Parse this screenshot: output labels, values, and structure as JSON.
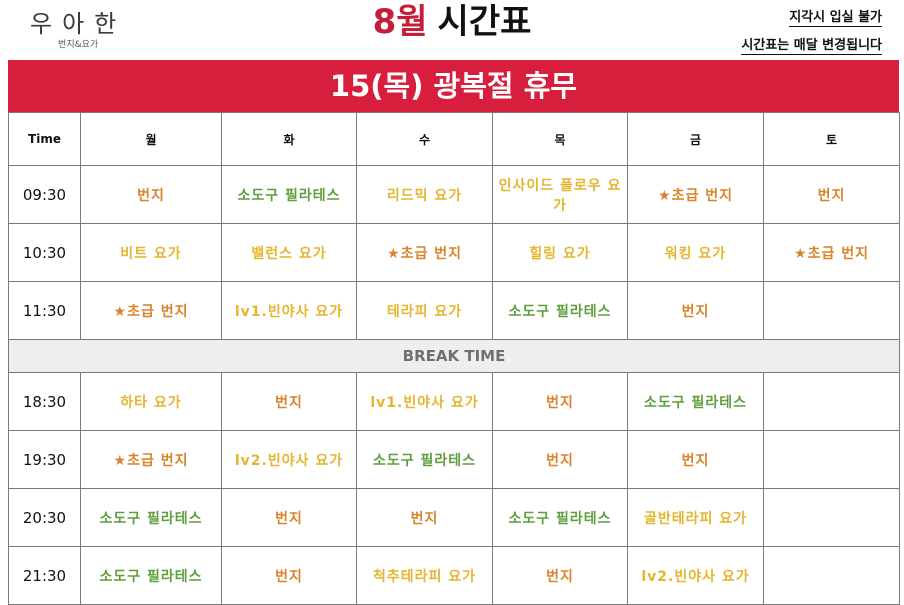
{
  "logo": {
    "main": "우아한",
    "sub": "번지&요가"
  },
  "header": {
    "month": "8월",
    "title": "시간표",
    "notice_late": "지각시 입실 불가",
    "notice_change": "시간표는 매달 변경됩니다"
  },
  "banner": "15(목) 광복절 휴무",
  "table": {
    "time_header": "Time",
    "days": [
      "월",
      "화",
      "수",
      "목",
      "금",
      "토"
    ],
    "break_label": "BREAK TIME",
    "morning": [
      {
        "time": "09:30",
        "cells": [
          {
            "text": "번지",
            "cls": "c-bungee"
          },
          {
            "text": "소도구 필라테스",
            "cls": "c-pilates"
          },
          {
            "text": "리드믹 요가",
            "cls": "c-yoga"
          },
          {
            "text": "인사이드 플로우 요가",
            "cls": "c-yoga"
          },
          {
            "text": "★초급 번지",
            "cls": "c-bungee"
          },
          {
            "text": "번지",
            "cls": "c-bungee"
          }
        ]
      },
      {
        "time": "10:30",
        "cells": [
          {
            "text": "비트 요가",
            "cls": "c-yoga"
          },
          {
            "text": "밸런스 요가",
            "cls": "c-yoga"
          },
          {
            "text": "★초급 번지",
            "cls": "c-bungee"
          },
          {
            "text": "힐링 요가",
            "cls": "c-yoga"
          },
          {
            "text": "워킹 요가",
            "cls": "c-yoga"
          },
          {
            "text": "★초급 번지",
            "cls": "c-bungee"
          }
        ]
      },
      {
        "time": "11:30",
        "cells": [
          {
            "text": "★초급 번지",
            "cls": "c-bungee"
          },
          {
            "text": "lv1.빈야사 요가",
            "cls": "c-yoga"
          },
          {
            "text": "테라피 요가",
            "cls": "c-yoga"
          },
          {
            "text": "소도구 필라테스",
            "cls": "c-pilates"
          },
          {
            "text": "번지",
            "cls": "c-bungee"
          },
          {
            "text": "",
            "cls": ""
          }
        ]
      }
    ],
    "evening": [
      {
        "time": "18:30",
        "cells": [
          {
            "text": "하타 요가",
            "cls": "c-yoga"
          },
          {
            "text": "번지",
            "cls": "c-bungee"
          },
          {
            "text": "lv1.빈야사 요가",
            "cls": "c-yoga"
          },
          {
            "text": "번지",
            "cls": "c-bungee"
          },
          {
            "text": "소도구 필라테스",
            "cls": "c-pilates"
          },
          {
            "text": "",
            "cls": ""
          }
        ]
      },
      {
        "time": "19:30",
        "cells": [
          {
            "text": "★초급 번지",
            "cls": "c-bungee"
          },
          {
            "text": "lv2.빈야사 요가",
            "cls": "c-yoga"
          },
          {
            "text": "소도구 필라테스",
            "cls": "c-pilates"
          },
          {
            "text": "번지",
            "cls": "c-bungee"
          },
          {
            "text": "번지",
            "cls": "c-bungee"
          },
          {
            "text": "",
            "cls": ""
          }
        ]
      },
      {
        "time": "20:30",
        "cells": [
          {
            "text": "소도구 필라테스",
            "cls": "c-pilates"
          },
          {
            "text": "번지",
            "cls": "c-bungee"
          },
          {
            "text": "번지",
            "cls": "c-bungee"
          },
          {
            "text": "소도구 필라테스",
            "cls": "c-pilates"
          },
          {
            "text": "골반테라피 요가",
            "cls": "c-yoga"
          },
          {
            "text": "",
            "cls": ""
          }
        ]
      },
      {
        "time": "21:30",
        "cells": [
          {
            "text": "소도구 필라테스",
            "cls": "c-pilates"
          },
          {
            "text": "번지",
            "cls": "c-bungee"
          },
          {
            "text": "척추테라피 요가",
            "cls": "c-yoga"
          },
          {
            "text": "번지",
            "cls": "c-bungee"
          },
          {
            "text": "lv2.빈야사 요가",
            "cls": "c-yoga"
          },
          {
            "text": "",
            "cls": ""
          }
        ]
      }
    ]
  }
}
